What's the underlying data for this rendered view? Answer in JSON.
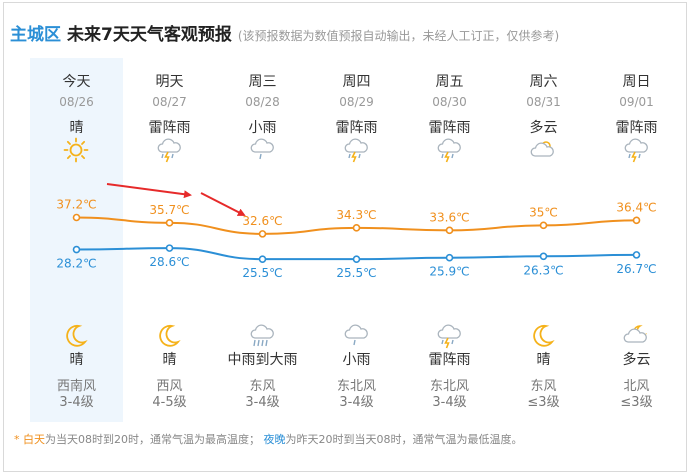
{
  "header": {
    "city": "主城区",
    "title": "未来7天天气客观预报",
    "note": "(该预报数据为数值预报自动输出，未经人工订正，仅供参考)"
  },
  "days": [
    {
      "name": "今天",
      "date": "08/26",
      "day_weather": "晴",
      "day_icon": "sun-icon",
      "high": "37.2℃",
      "low": "28.2℃",
      "night_weather": "晴",
      "night_icon": "moon-icon",
      "wind_dir": "西南风",
      "wind_level": "3-4级"
    },
    {
      "name": "明天",
      "date": "08/27",
      "day_weather": "雷阵雨",
      "day_icon": "thunderstorm-icon",
      "high": "35.7℃",
      "low": "28.6℃",
      "night_weather": "晴",
      "night_icon": "moon-icon",
      "wind_dir": "西风",
      "wind_level": "4-5级"
    },
    {
      "name": "周三",
      "date": "08/28",
      "day_weather": "小雨",
      "day_icon": "light-rain-icon",
      "high": "32.6℃",
      "low": "25.5℃",
      "night_weather": "中雨到大雨",
      "night_icon": "heavy-rain-icon",
      "wind_dir": "东风",
      "wind_level": "3-4级"
    },
    {
      "name": "周四",
      "date": "08/29",
      "day_weather": "雷阵雨",
      "day_icon": "thunderstorm-icon",
      "high": "34.3℃",
      "low": "25.5℃",
      "night_weather": "小雨",
      "night_icon": "light-rain-icon",
      "wind_dir": "东北风",
      "wind_level": "3-4级"
    },
    {
      "name": "周五",
      "date": "08/30",
      "day_weather": "雷阵雨",
      "day_icon": "thunderstorm-icon",
      "high": "33.6℃",
      "low": "25.9℃",
      "night_weather": "雷阵雨",
      "night_icon": "thunderstorm-icon",
      "wind_dir": "东北风",
      "wind_level": "3-4级"
    },
    {
      "name": "周六",
      "date": "08/31",
      "day_weather": "多云",
      "day_icon": "partly-cloudy-icon",
      "high": "35℃",
      "low": "26.3℃",
      "night_weather": "晴",
      "night_icon": "moon-icon",
      "wind_dir": "东风",
      "wind_level": "≤3级"
    },
    {
      "name": "周日",
      "date": "09/01",
      "day_weather": "雷阵雨",
      "day_icon": "thunderstorm-icon",
      "high": "36.4℃",
      "low": "26.7℃",
      "night_weather": "多云",
      "night_icon": "partly-cloudy-night-icon",
      "wind_dir": "北风",
      "wind_level": "≤3级"
    }
  ],
  "chart_data": {
    "type": "line",
    "categories": [
      "08/26",
      "08/27",
      "08/28",
      "08/29",
      "08/30",
      "08/31",
      "09/01"
    ],
    "series": [
      {
        "values": [
          37.2,
          35.7,
          32.6,
          34.3,
          33.6,
          35.0,
          36.4
        ],
        "color": "#f0901e"
      },
      {
        "values": [
          28.2,
          28.6,
          25.5,
          25.5,
          25.9,
          26.3,
          26.7
        ],
        "color": "#2b8fd6"
      }
    ],
    "grid": false,
    "annotations": [
      {
        "type": "arrow",
        "color": "#e62a2a",
        "from_category": "08/26",
        "to_category": "08/27"
      },
      {
        "type": "arrow",
        "color": "#e62a2a",
        "from_category": "08/27",
        "to_category": "08/28"
      }
    ]
  },
  "footer": {
    "star": "*",
    "day_label": "白天",
    "day_text": "为当天08时到20时，通常气温为最高温度；",
    "night_label": "夜晚",
    "night_text": "为昨天20时到当天08时，通常气温为最低温度。"
  },
  "colors": {
    "accent": "#2b8fd6",
    "high": "#f0901e",
    "low": "#2b8fd6",
    "today_bg": "#eef6fd",
    "arrow": "#e62a2a"
  }
}
